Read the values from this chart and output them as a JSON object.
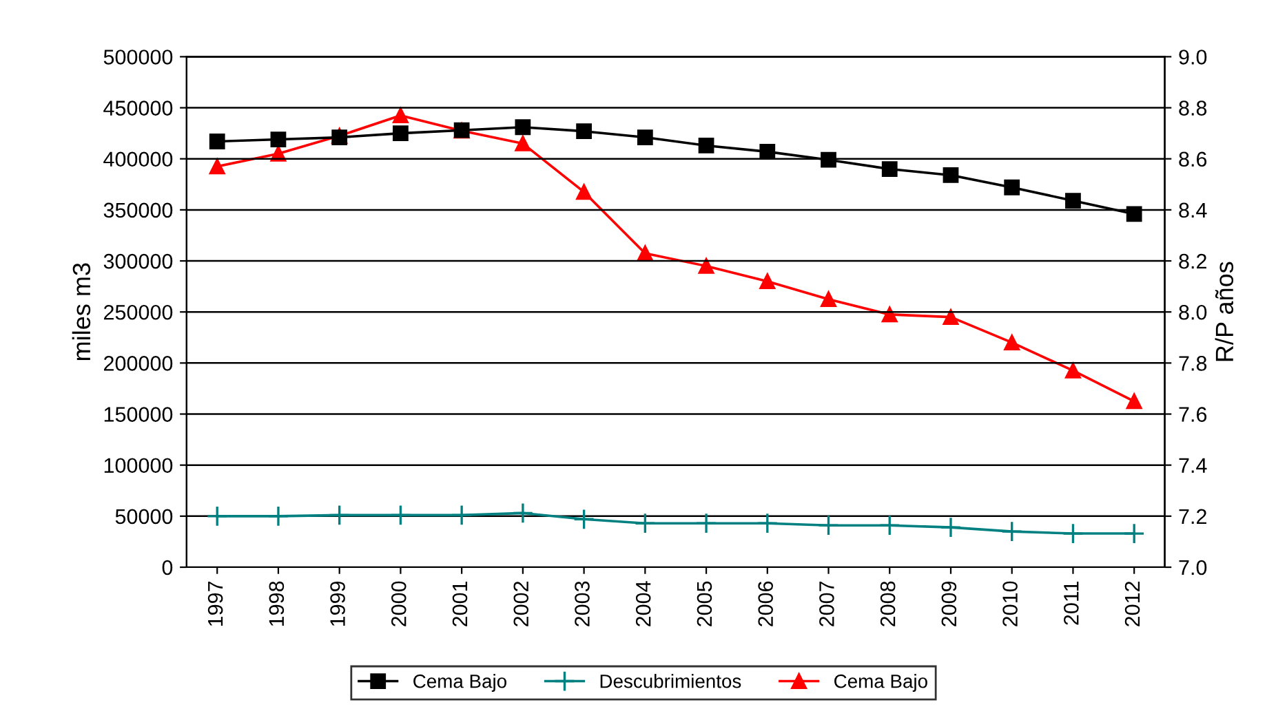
{
  "chart_data": {
    "type": "line",
    "ylabel": "miles m3",
    "y2label": "R/P años",
    "categories": [
      "1997",
      "1998",
      "1999",
      "2000",
      "2001",
      "2002",
      "2003",
      "2004",
      "2005",
      "2006",
      "2007",
      "2008",
      "2009",
      "2010",
      "2011",
      "2012"
    ],
    "series": [
      {
        "name": "Cema Bajo",
        "color": "#000000",
        "marker": "square",
        "values": [
          417000,
          419000,
          421000,
          425000,
          428000,
          431000,
          427000,
          421000,
          413000,
          407000,
          399000,
          390000,
          384000,
          372000,
          359000,
          346000
        ]
      },
      {
        "name": "Descubrimientos",
        "color": "#008080",
        "marker": "cross",
        "values": [
          50000,
          50000,
          51000,
          51000,
          51000,
          53000,
          47000,
          43000,
          43000,
          43000,
          41000,
          41000,
          39000,
          35000,
          33000,
          33000
        ]
      },
      {
        "name": "Cema Bajo",
        "color": "#ff0000",
        "marker": "triangle",
        "axis": "y2",
        "values": [
          8.57,
          8.62,
          8.69,
          8.77,
          8.71,
          8.66,
          8.47,
          8.23,
          8.18,
          8.12,
          8.05,
          7.99,
          7.98,
          7.88,
          7.77,
          7.65
        ]
      }
    ],
    "ylim": [
      0,
      500000
    ],
    "yticks": [
      0,
      50000,
      100000,
      150000,
      200000,
      250000,
      300000,
      350000,
      400000,
      450000,
      500000
    ],
    "y2lim": [
      7.0,
      9.0
    ],
    "y2ticks": [
      {
        "value": 7.0,
        "label": "7.0"
      },
      {
        "value": 7.2,
        "label": "7.2"
      },
      {
        "value": 7.4,
        "label": "7.4"
      },
      {
        "value": 7.6,
        "label": "7.6"
      },
      {
        "value": 7.8,
        "label": "7.8"
      },
      {
        "value": 8.0,
        "label": "8.0"
      },
      {
        "value": 8.2,
        "label": "8.2"
      },
      {
        "value": 8.4,
        "label": "8.4"
      },
      {
        "value": 8.6,
        "label": "8.6"
      },
      {
        "value": 8.8,
        "label": "8.8"
      },
      {
        "value": 9.0,
        "label": "9.0"
      }
    ],
    "grid": "y",
    "legend": "bottom",
    "line_style": "solid"
  }
}
